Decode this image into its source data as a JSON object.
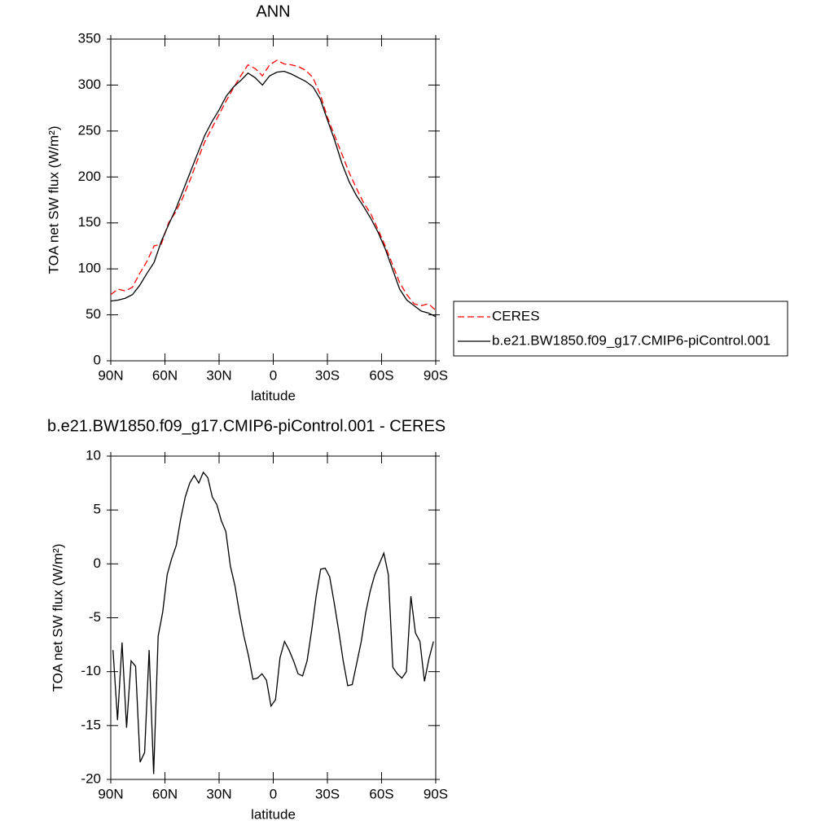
{
  "chart_data": [
    {
      "type": "line",
      "title": "ANN",
      "xlabel": "latitude",
      "ylabel": "TOA net SW flux (W/m²)",
      "xlim": [
        90,
        -90
      ],
      "xticks": [
        {
          "value": 90,
          "label": "90N"
        },
        {
          "value": 60,
          "label": "60N"
        },
        {
          "value": 30,
          "label": "30N"
        },
        0,
        {
          "value": -30,
          "label": "30S"
        },
        {
          "value": -60,
          "label": "60S"
        },
        {
          "value": -90,
          "label": "90S"
        }
      ],
      "ylim": [
        0,
        350
      ],
      "yticks": [
        0,
        50,
        100,
        150,
        200,
        250,
        300,
        350
      ],
      "legend": "right",
      "x": [
        90,
        86,
        82,
        78,
        74,
        70,
        66,
        62,
        58,
        54,
        50,
        46,
        42,
        38,
        34,
        30,
        26,
        22,
        18,
        14,
        10,
        6,
        2,
        -2,
        -6,
        -10,
        -14,
        -18,
        -22,
        -26,
        -30,
        -34,
        -38,
        -42,
        -46,
        -50,
        -54,
        -58,
        -62,
        -66,
        -70,
        -74,
        -78,
        -82,
        -86,
        -90
      ],
      "series": [
        {
          "name": "CERES",
          "color": "#ff0000",
          "dashed": true,
          "values": [
            72,
            78,
            76,
            80,
            95,
            108,
            125,
            127,
            150,
            162,
            178,
            197,
            218,
            238,
            253,
            268,
            283,
            297,
            310,
            322,
            318,
            310,
            322,
            327,
            323,
            322,
            320,
            316,
            308,
            290,
            265,
            245,
            225,
            205,
            188,
            172,
            160,
            143,
            125,
            105,
            85,
            72,
            62,
            60,
            62,
            55
          ]
        },
        {
          "name": "b.e21.BW1850.f09_g17.CMIP6-piControl.001",
          "color": "#000000",
          "dashed": false,
          "values": [
            65,
            66,
            68,
            72,
            82,
            95,
            107,
            130,
            148,
            165,
            185,
            205,
            225,
            245,
            260,
            273,
            288,
            298,
            305,
            313,
            308,
            300,
            310,
            314,
            315,
            312,
            308,
            304,
            298,
            285,
            262,
            240,
            215,
            195,
            180,
            168,
            155,
            140,
            122,
            100,
            78,
            66,
            60,
            54,
            52,
            48
          ]
        }
      ]
    },
    {
      "type": "line",
      "title": "b.e21.BW1850.f09_g17.CMIP6-piControl.001 - CERES",
      "xlabel": "latitude",
      "ylabel": "TOA net SW flux (W/m²)",
      "xlim": [
        90,
        -90
      ],
      "xticks": [
        {
          "value": 90,
          "label": "90N"
        },
        {
          "value": 60,
          "label": "60N"
        },
        {
          "value": 30,
          "label": "30N"
        },
        0,
        {
          "value": -30,
          "label": "30S"
        },
        {
          "value": -60,
          "label": "60S"
        },
        {
          "value": -90,
          "label": "90S"
        }
      ],
      "ylim": [
        -20,
        10
      ],
      "yticks": [
        -20,
        -15,
        -10,
        -5,
        0,
        5,
        10
      ],
      "x": [
        88.75,
        86.25,
        83.75,
        81.25,
        78.75,
        76.25,
        73.75,
        71.25,
        68.75,
        66.25,
        63.75,
        61.25,
        58.75,
        56.25,
        53.75,
        51.25,
        48.75,
        46.25,
        43.75,
        41.25,
        38.75,
        36.25,
        33.75,
        31.25,
        28.75,
        26.25,
        23.75,
        21.25,
        18.75,
        16.25,
        13.75,
        11.25,
        8.75,
        6.25,
        3.75,
        1.25,
        -1.25,
        -3.75,
        -6.25,
        -8.75,
        -11.25,
        -13.75,
        -16.25,
        -18.75,
        -21.25,
        -23.75,
        -26.25,
        -28.75,
        -31.25,
        -33.75,
        -36.25,
        -38.75,
        -41.25,
        -43.75,
        -46.25,
        -48.75,
        -51.25,
        -53.75,
        -56.25,
        -58.75,
        -61.25,
        -63.75,
        -66.25,
        -68.75,
        -71.25,
        -73.75,
        -76.25,
        -78.75,
        -81.25,
        -83.75,
        -86.25,
        -88.75
      ],
      "color": "#000000",
      "values": [
        -8,
        -14.5,
        -7.3,
        -15.2,
        -9,
        -9.5,
        -18.4,
        -17.5,
        -8,
        -19.5,
        -6.7,
        -4.5,
        -1,
        0.5,
        1.7,
        4.2,
        6.2,
        7.5,
        8.2,
        7.5,
        8.5,
        8,
        6.2,
        5.5,
        4,
        3,
        -0.2,
        -2,
        -4.5,
        -6.7,
        -8.5,
        -10.7,
        -10.6,
        -10.2,
        -10.8,
        -13.2,
        -12.6,
        -8.7,
        -7.2,
        -8,
        -9,
        -10.2,
        -10.4,
        -9,
        -6.2,
        -3,
        -0.5,
        -0.4,
        -1.2,
        -3.6,
        -6.2,
        -9,
        -11.3,
        -11.2,
        -9.2,
        -7.2,
        -4.5,
        -2.5,
        -1,
        0,
        1,
        -1,
        -9.6,
        -10.2,
        -10.6,
        -10,
        -3,
        -6.4,
        -7.2,
        -10.9,
        -8.8,
        -7.2
      ]
    }
  ]
}
